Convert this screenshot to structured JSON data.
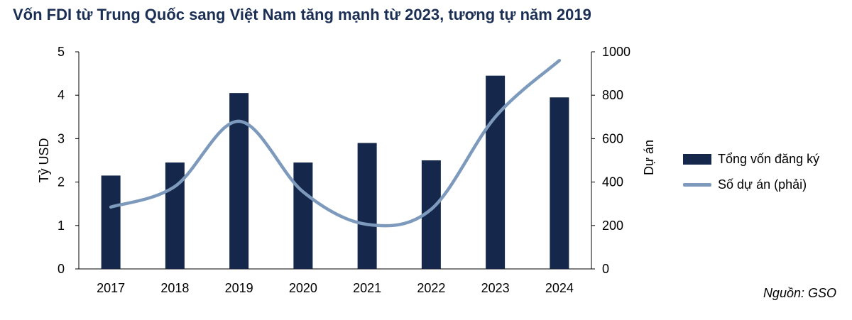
{
  "title": "Vốn FDI từ Trung Quốc sang Việt Nam tăng mạnh từ 2023, tương tự năm 2019",
  "source": "Nguồn: GSO",
  "colors": {
    "bar": "#15284b",
    "line": "#7d9abd",
    "axis": "#000000"
  },
  "chart_data": {
    "type": "bar",
    "categories": [
      "2017",
      "2018",
      "2019",
      "2020",
      "2021",
      "2022",
      "2023",
      "2024"
    ],
    "series": [
      {
        "name": "Tổng vốn đăng ký",
        "type": "bar",
        "axis": "left",
        "values": [
          2.15,
          2.45,
          4.05,
          2.45,
          2.9,
          2.5,
          4.45,
          3.95
        ]
      },
      {
        "name": "Số dự án (phải)",
        "type": "line",
        "axis": "right",
        "smooth": true,
        "values": [
          285,
          380,
          680,
          355,
          205,
          275,
          700,
          960
        ]
      }
    ],
    "ylabel": "Tỷ USD",
    "y2label": "Dự án",
    "ylim": [
      0,
      5
    ],
    "y2lim": [
      0,
      1000
    ],
    "yticks": [
      "0",
      "1",
      "2",
      "3",
      "4",
      "5"
    ],
    "y2ticks": [
      "0",
      "200",
      "400",
      "600",
      "800",
      "1000"
    ],
    "grid": false,
    "legend_position": "right"
  }
}
